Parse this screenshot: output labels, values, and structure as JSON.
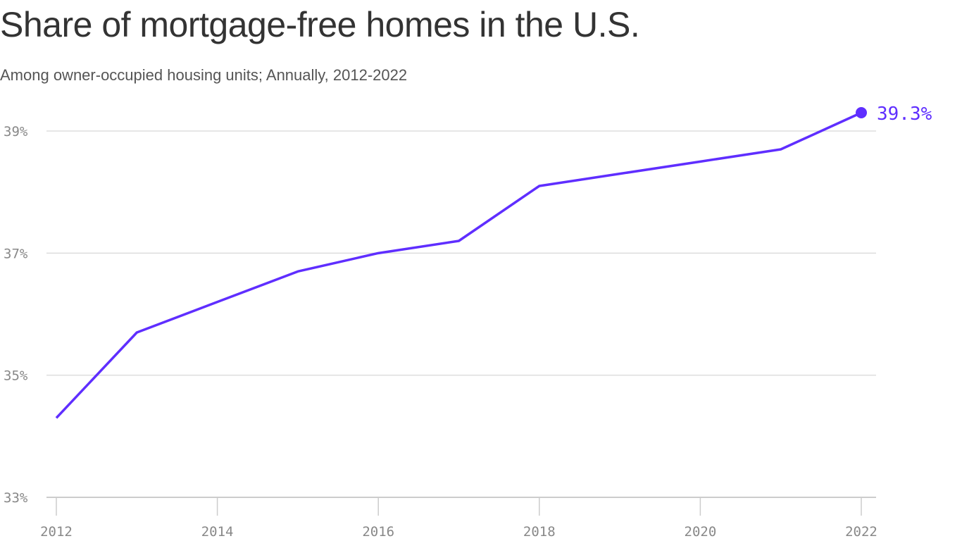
{
  "chart_data": {
    "type": "line",
    "title": "Share of mortgage-free homes in the U.S.",
    "subtitle": "Among owner-occupied housing units; Annually, 2012-2022",
    "x": [
      2012,
      2013,
      2014,
      2015,
      2016,
      2017,
      2018,
      2019,
      2020,
      2021,
      2022
    ],
    "series": [
      {
        "values": [
          34.3,
          35.7,
          36.2,
          36.7,
          37.0,
          37.2,
          38.1,
          38.3,
          38.5,
          38.7,
          39.3
        ],
        "color": "#5f2eff"
      }
    ],
    "ylim": [
      33,
      39.3
    ],
    "xlim": [
      2012,
      2022
    ],
    "y_ticks": [
      33,
      35,
      37,
      39
    ],
    "y_tick_labels": [
      "33%",
      "35%",
      "37%",
      "39%"
    ],
    "x_ticks": [
      2012,
      2014,
      2016,
      2018,
      2020,
      2022
    ],
    "x_tick_labels": [
      "2012",
      "2014",
      "2016",
      "2018",
      "2020",
      "2022"
    ],
    "end_label": "39.3%",
    "grid": "horizontal",
    "xlabel": "",
    "ylabel": ""
  }
}
